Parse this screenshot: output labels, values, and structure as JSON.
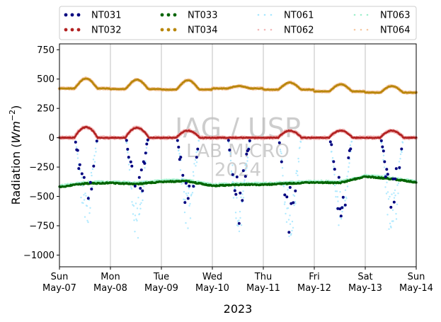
{
  "chart_data": {
    "type": "scatter",
    "title": "",
    "ylabel": "Radiation (Wm^-2)",
    "ylabel_main": "Radiation (",
    "ylabel_unit": "Wm",
    "ylabel_exp": "−2",
    "ylabel_close": ")",
    "xlabel": "2023",
    "ylim": [
      -1100,
      800
    ],
    "xlim": [
      "2023-05-07",
      "2023-05-14"
    ],
    "yticks": [
      750,
      500,
      250,
      0,
      -250,
      -500,
      -750,
      -1000
    ],
    "ytick_labels": [
      "750",
      "500",
      "250",
      "0",
      "−250",
      "−500",
      "−750",
      "−1000"
    ],
    "xtick_labels": [
      {
        "day": "Sun",
        "date": "May-07"
      },
      {
        "day": "Mon",
        "date": "May-08"
      },
      {
        "day": "Tue",
        "date": "May-09"
      },
      {
        "day": "Wed",
        "date": "May-10"
      },
      {
        "day": "Thu",
        "date": "May-11"
      },
      {
        "day": "Fri",
        "date": "May-12"
      },
      {
        "day": "Sat",
        "date": "May-13"
      },
      {
        "day": "Sun",
        "date": "May-14"
      }
    ],
    "grid": "vertical",
    "legend_position": "top",
    "watermark": [
      "IAG / USP",
      "LAB MICRO",
      "2024"
    ],
    "series": [
      {
        "name": "NT031",
        "color": "#00007f",
        "style": "dots"
      },
      {
        "name": "NT032",
        "color": "#b22222",
        "style": "dots"
      },
      {
        "name": "NT033",
        "color": "#006400",
        "style": "dots"
      },
      {
        "name": "NT034",
        "color": "#b8860b",
        "style": "dots"
      },
      {
        "name": "NT061",
        "color": "#a9e8ff",
        "style": "faint"
      },
      {
        "name": "NT062",
        "color": "#f2b7b7",
        "style": "faint"
      },
      {
        "name": "NT063",
        "color": "#9ff0cc",
        "style": "faint"
      },
      {
        "name": "NT064",
        "color": "#f6c7a0",
        "style": "faint"
      }
    ],
    "profiles": {
      "upwelling_lw_days": [
        {
          "date": "2023-05-07",
          "base": 420,
          "peak": 505
        },
        {
          "date": "2023-05-08",
          "base": 415,
          "peak": 495
        },
        {
          "date": "2023-05-09",
          "base": 410,
          "peak": 490
        },
        {
          "date": "2023-05-10",
          "base": 420,
          "peak": 440
        },
        {
          "date": "2023-05-11",
          "base": 410,
          "peak": 470
        },
        {
          "date": "2023-05-12",
          "base": 395,
          "peak": 455
        },
        {
          "date": "2023-05-13",
          "base": 385,
          "peak": 440
        }
      ],
      "net_day_peaks": [
        {
          "date": "2023-05-07",
          "peak": 90
        },
        {
          "date": "2023-05-08",
          "peak": 85
        },
        {
          "date": "2023-05-09",
          "peak": 60
        },
        {
          "date": "2023-05-10",
          "peak": 0
        },
        {
          "date": "2023-05-11",
          "peak": 60
        },
        {
          "date": "2023-05-12",
          "peak": 60
        },
        {
          "date": "2023-05-13",
          "peak": 60
        }
      ],
      "downwelling_lw": [
        {
          "x": "2023-05-07 00:00",
          "y": -420
        },
        {
          "x": "2023-05-07 12:00",
          "y": -390
        },
        {
          "x": "2023-05-08 00:00",
          "y": -385
        },
        {
          "x": "2023-05-08 12:00",
          "y": -395
        },
        {
          "x": "2023-05-09 00:00",
          "y": -375
        },
        {
          "x": "2023-05-09 12:00",
          "y": -370
        },
        {
          "x": "2023-05-10 00:00",
          "y": -410
        },
        {
          "x": "2023-05-10 12:00",
          "y": -400
        },
        {
          "x": "2023-05-11 00:00",
          "y": -400
        },
        {
          "x": "2023-05-11 12:00",
          "y": -390
        },
        {
          "x": "2023-05-12 00:00",
          "y": -380
        },
        {
          "x": "2023-05-12 12:00",
          "y": -385
        },
        {
          "x": "2023-05-13 00:00",
          "y": -330
        },
        {
          "x": "2023-05-13 12:00",
          "y": -350
        },
        {
          "x": "2023-05-14 00:00",
          "y": -380
        }
      ],
      "shortwave_day_min": [
        {
          "date": "2023-05-07",
          "nt031": -720,
          "nt061": -780
        },
        {
          "date": "2023-05-08",
          "nt031": -700,
          "nt061": -840
        },
        {
          "date": "2023-05-09",
          "nt031": -680,
          "nt061": -760
        },
        {
          "date": "2023-05-10",
          "nt031": -700,
          "nt061": -760
        },
        {
          "date": "2023-05-11",
          "nt031": -800,
          "nt061": -850
        },
        {
          "date": "2023-05-12",
          "nt031": -710,
          "nt061": -770
        },
        {
          "date": "2023-05-13",
          "nt031": -630,
          "nt061": -860
        }
      ]
    }
  }
}
